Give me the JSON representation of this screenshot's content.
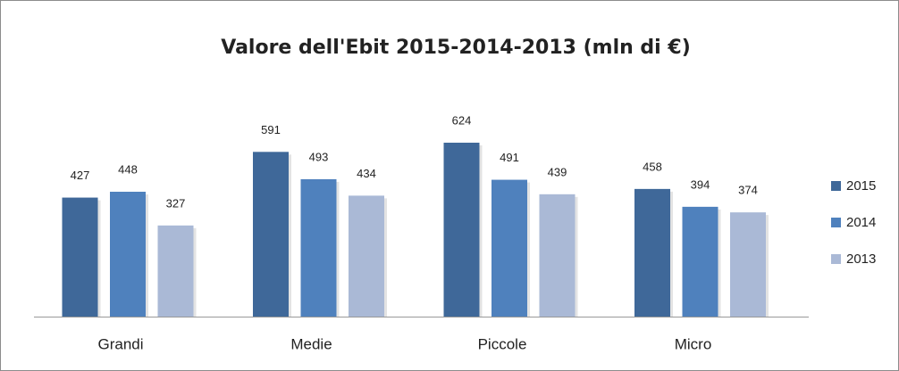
{
  "chart_data": {
    "type": "bar",
    "title": "Valore dell'Ebit 2015-2014-2013 (mln di €)",
    "categories": [
      "Grandi",
      "Medie",
      "Piccole",
      "Micro"
    ],
    "series": [
      {
        "name": "2015",
        "color": "#3f6899",
        "values": [
          427,
          591,
          624,
          458
        ]
      },
      {
        "name": "2014",
        "color": "#4f81bd",
        "values": [
          448,
          493,
          491,
          394
        ]
      },
      {
        "name": "2013",
        "color": "#aab9d6",
        "values": [
          327,
          434,
          439,
          374
        ]
      }
    ],
    "legend": "right"
  }
}
